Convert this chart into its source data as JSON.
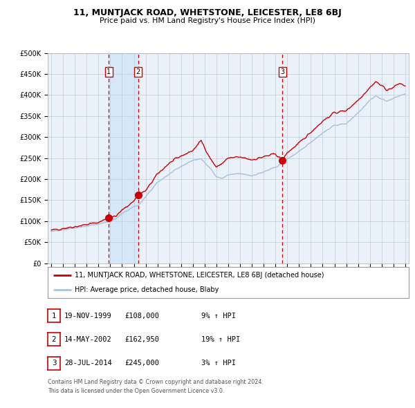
{
  "title": "11, MUNTJACK ROAD, WHETSTONE, LEICESTER, LE8 6BJ",
  "subtitle": "Price paid vs. HM Land Registry's House Price Index (HPI)",
  "legend_line1": "11, MUNTJACK ROAD, WHETSTONE, LEICESTER, LE8 6BJ (detached house)",
  "legend_line2": "HPI: Average price, detached house, Blaby",
  "table_rows": [
    [
      "1",
      "19-NOV-1999",
      "£108,000",
      "9% ↑ HPI"
    ],
    [
      "2",
      "14-MAY-2002",
      "£162,950",
      "19% ↑ HPI"
    ],
    [
      "3",
      "28-JUL-2014",
      "£245,000",
      "3% ↑ HPI"
    ]
  ],
  "footer_line1": "Contains HM Land Registry data © Crown copyright and database right 2024.",
  "footer_line2": "This data is licensed under the Open Government Licence v3.0.",
  "hpi_color": "#aac4e0",
  "price_color": "#cc0000",
  "dot_color": "#cc0000",
  "vline_color": "#cc0000",
  "shade_color": "#d6e8f7",
  "grid_color": "#bbccdd",
  "ylim": [
    0,
    500000
  ],
  "yticks": [
    0,
    50000,
    100000,
    150000,
    200000,
    250000,
    300000,
    350000,
    400000,
    450000,
    500000
  ],
  "xlim_start": 1994.7,
  "xlim_end": 2025.3,
  "background_color": "#ffffff",
  "plot_bg_color": "#eaf1f8",
  "sale_year_decimals": [
    1999.876,
    2002.37,
    2014.577
  ],
  "sale_prices": [
    108000,
    162950,
    245000
  ],
  "sale_labels": [
    "1",
    "2",
    "3"
  ],
  "hpi_anchors_x": [
    1995.0,
    1996.0,
    1997.0,
    1998.0,
    1999.0,
    1999.876,
    2000.5,
    2001.0,
    2002.0,
    2002.37,
    2003.0,
    2004.0,
    2005.0,
    2006.0,
    2007.0,
    2007.7,
    2008.0,
    2008.5,
    2009.0,
    2009.5,
    2010.0,
    2011.0,
    2012.0,
    2013.0,
    2014.0,
    2014.58,
    2015.0,
    2016.0,
    2017.0,
    2018.0,
    2019.0,
    2020.0,
    2021.0,
    2022.0,
    2022.5,
    2023.0,
    2023.5,
    2024.0,
    2024.5,
    2025.0
  ],
  "hpi_anchors_y": [
    75000,
    80000,
    84000,
    88000,
    93000,
    99000,
    106000,
    118000,
    135000,
    137000,
    158000,
    192000,
    212000,
    230000,
    245000,
    248000,
    240000,
    225000,
    205000,
    202000,
    210000,
    213000,
    208000,
    217000,
    228000,
    238000,
    248000,
    265000,
    288000,
    310000,
    328000,
    332000,
    358000,
    388000,
    398000,
    390000,
    386000,
    392000,
    398000,
    403000
  ],
  "price_anchors_x": [
    1995.0,
    1996.0,
    1997.0,
    1998.0,
    1999.0,
    1999.876,
    2000.5,
    2001.0,
    2002.0,
    2002.37,
    2003.0,
    2004.0,
    2005.0,
    2006.0,
    2007.0,
    2007.7,
    2008.0,
    2008.5,
    2009.0,
    2009.5,
    2010.0,
    2011.0,
    2012.0,
    2013.0,
    2014.0,
    2014.58,
    2015.0,
    2016.0,
    2017.0,
    2018.0,
    2019.0,
    2020.0,
    2021.0,
    2022.0,
    2022.5,
    2023.0,
    2023.5,
    2024.0,
    2024.5,
    2025.0
  ],
  "price_anchors_y": [
    78000,
    83000,
    87000,
    92000,
    97000,
    108000,
    112000,
    126000,
    148000,
    162950,
    172000,
    212000,
    238000,
    255000,
    268000,
    292000,
    275000,
    248000,
    228000,
    238000,
    250000,
    252000,
    246000,
    253000,
    260000,
    245000,
    263000,
    285000,
    312000,
    338000,
    358000,
    363000,
    388000,
    418000,
    432000,
    422000,
    412000,
    418000,
    428000,
    422000
  ]
}
